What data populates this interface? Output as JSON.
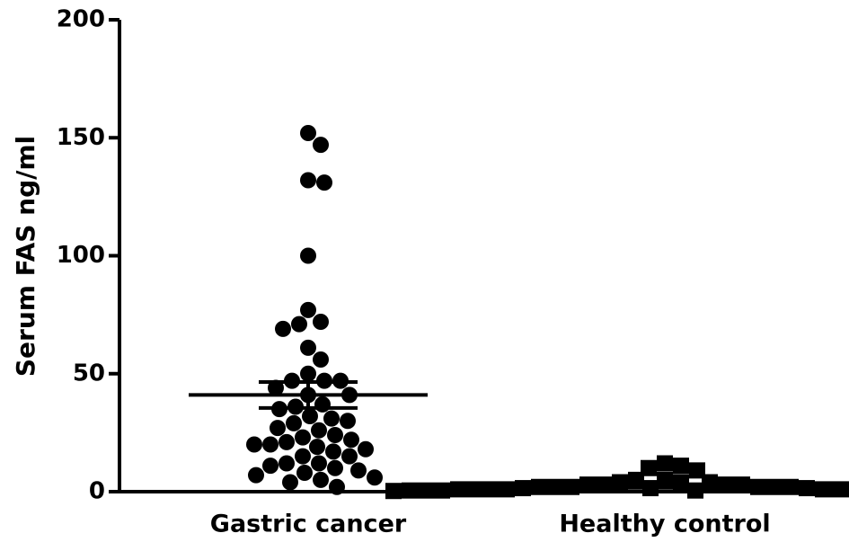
{
  "chart_data": {
    "type": "dot",
    "y_label": "Serum FAS ng/ml",
    "categories": [
      "Gastric cancer",
      "Healthy control"
    ],
    "groups": [
      {
        "marker": "circle",
        "color": "#000000",
        "values": [
          152,
          147,
          132,
          131,
          100,
          77,
          72,
          71,
          69,
          61,
          56,
          50,
          47,
          47,
          47,
          44,
          41,
          41,
          37,
          36,
          35,
          32,
          31,
          30,
          29,
          27,
          26,
          24,
          23,
          22,
          21,
          20,
          20,
          19,
          18,
          17,
          15,
          15,
          12,
          12,
          11,
          10,
          9,
          8,
          7,
          6,
          5,
          4,
          2
        ],
        "mean": 41,
        "sem": 5.5
      },
      {
        "marker": "square",
        "color": "#000000",
        "values": [
          12,
          11,
          10,
          9,
          5,
          5,
          4,
          4,
          4,
          3,
          3,
          3,
          3,
          2,
          2,
          2,
          2,
          2,
          2,
          1.5,
          1.5,
          1.5,
          1,
          1,
          1,
          1,
          1,
          1,
          1,
          1,
          0.5,
          0.5,
          0.5,
          0.5,
          0.5,
          0.5,
          0.5,
          0.3,
          0.3,
          0.3
        ],
        "mean": 2,
        "sem": 0.4
      }
    ],
    "ylim": [
      0,
      200
    ],
    "yticks": [
      0,
      50,
      100,
      150,
      200
    ],
    "grid": false
  }
}
